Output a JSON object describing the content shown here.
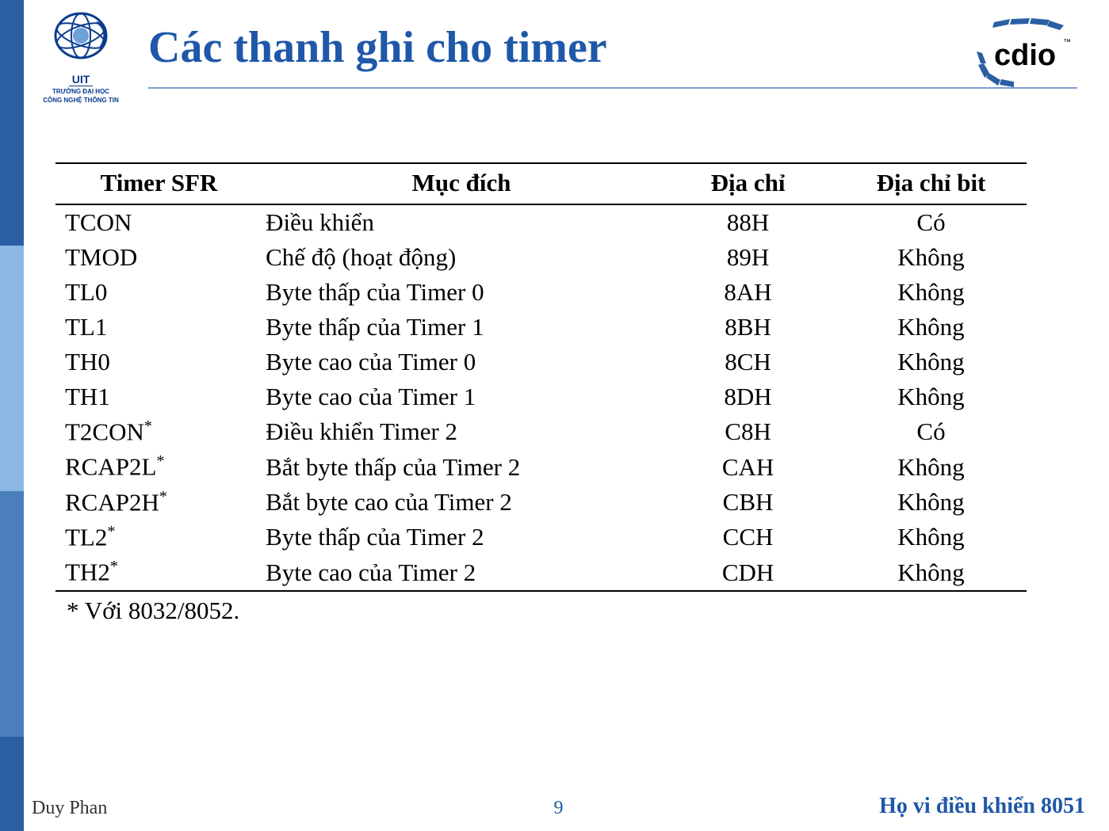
{
  "header": {
    "title": "Các thanh ghi cho timer",
    "uit_label": "UIT",
    "uit_sub1": "TRƯỜNG ĐẠI HỌC",
    "uit_sub2": "CÔNG NGHỆ THÔNG TIN",
    "cdio_label": "cdio",
    "title_color": "#1f58a8",
    "underline_color": "#7a9fcf"
  },
  "table": {
    "columns": [
      "Timer SFR",
      "Mục đích",
      "Địa chỉ",
      "Địa chỉ bit"
    ],
    "rows": [
      {
        "sfr": "TCON",
        "star": false,
        "purpose": "Điều khiển",
        "addr": "88H",
        "bit": "Có"
      },
      {
        "sfr": "TMOD",
        "star": false,
        "purpose": "Chế độ (hoạt động)",
        "addr": "89H",
        "bit": "Không"
      },
      {
        "sfr": "TL0",
        "star": false,
        "purpose": "Byte thấp của Timer 0",
        "addr": "8AH",
        "bit": "Không"
      },
      {
        "sfr": "TL1",
        "star": false,
        "purpose": "Byte thấp của Timer 1",
        "addr": "8BH",
        "bit": "Không"
      },
      {
        "sfr": "TH0",
        "star": false,
        "purpose": "Byte cao của Timer 0",
        "addr": "8CH",
        "bit": "Không"
      },
      {
        "sfr": "TH1",
        "star": false,
        "purpose": "Byte cao của Timer 1",
        "addr": "8DH",
        "bit": "Không"
      },
      {
        "sfr": "T2CON",
        "star": true,
        "purpose": "Điều khiển Timer 2",
        "addr": "C8H",
        "bit": "Có"
      },
      {
        "sfr": "RCAP2L",
        "star": true,
        "purpose": "Bắt byte thấp của Timer 2",
        "addr": "CAH",
        "bit": "Không"
      },
      {
        "sfr": "RCAP2H",
        "star": true,
        "purpose": "Bắt byte cao của Timer 2",
        "addr": "CBH",
        "bit": "Không"
      },
      {
        "sfr": "TL2",
        "star": true,
        "purpose": "Byte thấp của Timer 2",
        "addr": "CCH",
        "bit": "Không"
      },
      {
        "sfr": "TH2",
        "star": true,
        "purpose": "Byte cao của Timer 2",
        "addr": "CDH",
        "bit": "Không"
      }
    ],
    "footnote": "* Với 8032/8052.",
    "font_size": 31,
    "border_color": "#000000",
    "text_color": "#000000"
  },
  "footer": {
    "author": "Duy Phan",
    "page": "9",
    "course": "Họ vi điều khiển 8051",
    "accent_color": "#1f58a8"
  },
  "sidebar_colors": [
    "#2a5fa3",
    "#8cb8e6",
    "#4b7fbc",
    "#2a5fa3"
  ],
  "background_color": "#ffffff"
}
